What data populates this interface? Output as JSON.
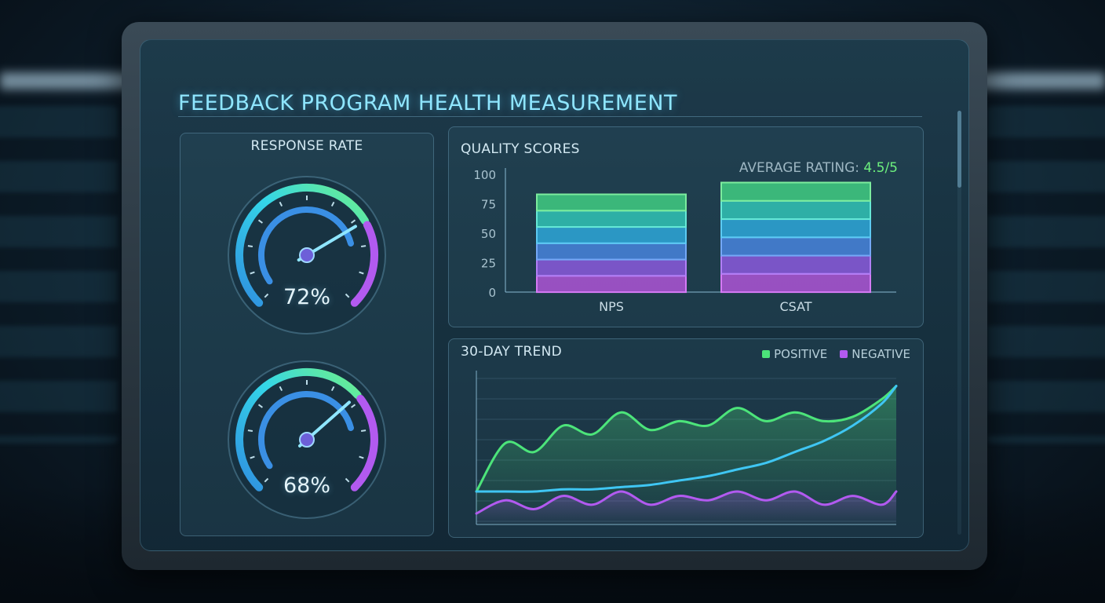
{
  "dashboard": {
    "title": "FEEDBACK PROGRAM HEALTH MEASUREMENT",
    "colors": {
      "accent": "#8fe6ff",
      "positive": "#4ce47a",
      "negative": "#b25af0",
      "trend": "#3fc6f3"
    }
  },
  "response_panel": {
    "title": "RESPONSE RATE",
    "gauges": [
      {
        "value_label": "72%",
        "value": 72
      },
      {
        "value_label": "68%",
        "value": 68
      }
    ]
  },
  "quality_panel": {
    "title": "QUALITY SCORES",
    "average_label": "AVERAGE RATING:",
    "average_value": "4.5/5"
  },
  "trend_panel": {
    "title": "30-DAY TREND",
    "legend": [
      {
        "label": "POSITIVE",
        "color": "#4ce47a"
      },
      {
        "label": "NEGATIVE",
        "color": "#b25af0"
      }
    ]
  },
  "chart_data": [
    {
      "type": "bar",
      "title": "QUALITY SCORES",
      "categories": [
        "NPS",
        "CSAT"
      ],
      "values": [
        83,
        93
      ],
      "ylim": [
        0,
        100
      ],
      "yticks": [
        "100",
        "75",
        "50",
        "25",
        "0"
      ],
      "grid": false
    },
    {
      "type": "line",
      "title": "30-DAY TREND",
      "x": [
        1,
        3,
        5,
        7,
        9,
        11,
        13,
        15,
        17,
        19,
        21,
        23,
        25,
        27,
        29,
        30
      ],
      "series": [
        {
          "name": "POSITIVE",
          "values": [
            40,
            62,
            58,
            70,
            66,
            76,
            68,
            72,
            70,
            78,
            72,
            76,
            72,
            74,
            82,
            88
          ]
        },
        {
          "name": "",
          "values": [
            40,
            40,
            40,
            41,
            41,
            42,
            43,
            45,
            47,
            50,
            53,
            58,
            63,
            70,
            80,
            88
          ]
        },
        {
          "name": "NEGATIVE",
          "values": [
            30,
            36,
            32,
            38,
            34,
            40,
            34,
            38,
            36,
            40,
            36,
            40,
            34,
            38,
            34,
            40
          ]
        }
      ],
      "ylim": [
        25,
        95
      ],
      "grid": true,
      "legend": "top-right"
    }
  ]
}
